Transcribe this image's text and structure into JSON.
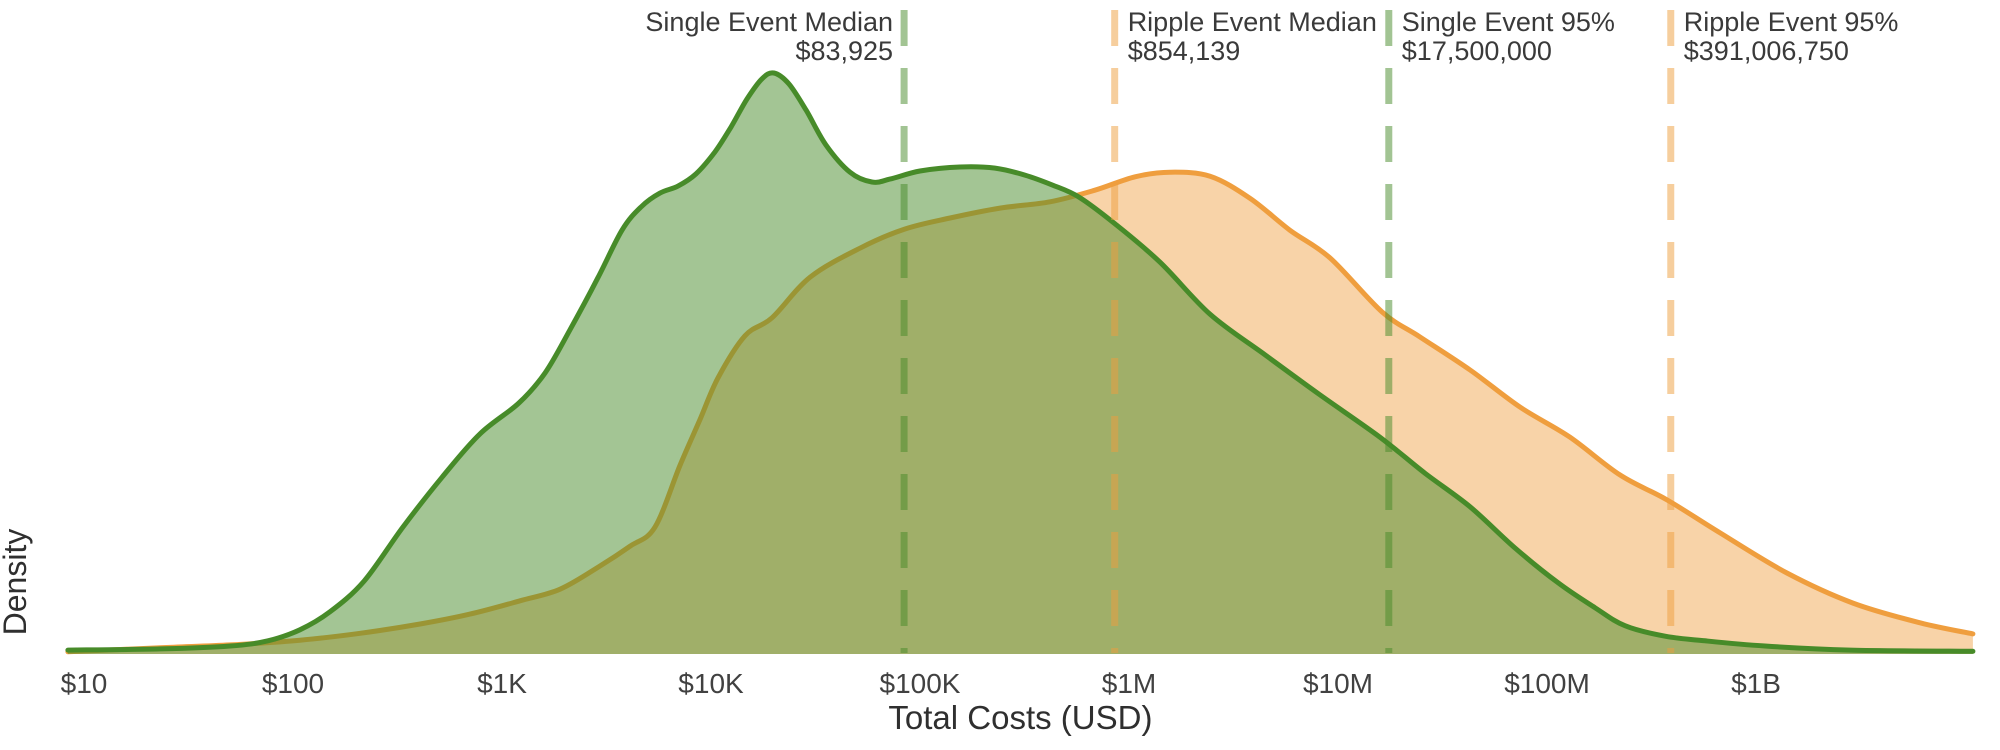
{
  "page": {
    "background": "#ffffff"
  },
  "chart_data": {
    "type": "area",
    "variant": "kde-density-log-x",
    "title": "",
    "xlabel": "Total Costs (USD)",
    "ylabel": "Density",
    "x_scale": "log10",
    "grid": false,
    "legend": false,
    "text_color": "#3a3a3a",
    "x_range_log10": [
      0.923,
      10.038
    ],
    "y_range_density": [
      0,
      1.05
    ],
    "x_ticks": [
      {
        "label": "$10",
        "value": 10
      },
      {
        "label": "$100",
        "value": 100
      },
      {
        "label": "$1K",
        "value": 1000
      },
      {
        "label": "$10K",
        "value": 10000
      },
      {
        "label": "$100K",
        "value": 100000
      },
      {
        "label": "$1M",
        "value": 1000000
      },
      {
        "label": "$10M",
        "value": 10000000
      },
      {
        "label": "$100M",
        "value": 100000000
      },
      {
        "label": "$1B",
        "value": 1000000000
      }
    ],
    "series": [
      {
        "name": "Ripple Event",
        "color": "#ef9e3e",
        "fill_opacity": 0.45,
        "points_log10x_density": [
          [
            0.923,
            0.002
          ],
          [
            1.364,
            0.009
          ],
          [
            1.699,
            0.014
          ],
          [
            2.033,
            0.022
          ],
          [
            2.321,
            0.034
          ],
          [
            2.608,
            0.05
          ],
          [
            2.847,
            0.067
          ],
          [
            3.086,
            0.09
          ],
          [
            3.278,
            0.11
          ],
          [
            3.469,
            0.15
          ],
          [
            3.612,
            0.184
          ],
          [
            3.732,
            0.217
          ],
          [
            3.852,
            0.324
          ],
          [
            3.947,
            0.402
          ],
          [
            4.033,
            0.474
          ],
          [
            4.163,
            0.547
          ],
          [
            4.292,
            0.578
          ],
          [
            4.474,
            0.648
          ],
          [
            4.713,
            0.698
          ],
          [
            4.928,
            0.731
          ],
          [
            5.144,
            0.75
          ],
          [
            5.383,
            0.767
          ],
          [
            5.622,
            0.778
          ],
          [
            5.837,
            0.798
          ],
          [
            6.029,
            0.821
          ],
          [
            6.196,
            0.829
          ],
          [
            6.388,
            0.822
          ],
          [
            6.579,
            0.784
          ],
          [
            6.77,
            0.729
          ],
          [
            6.962,
            0.681
          ],
          [
            7.211,
            0.588
          ],
          [
            7.392,
            0.545
          ],
          [
            7.632,
            0.488
          ],
          [
            7.871,
            0.424
          ],
          [
            8.11,
            0.372
          ],
          [
            8.349,
            0.307
          ],
          [
            8.574,
            0.264
          ],
          [
            8.828,
            0.207
          ],
          [
            9.148,
            0.138
          ],
          [
            9.464,
            0.086
          ],
          [
            9.785,
            0.052
          ],
          [
            10.038,
            0.033
          ]
        ]
      },
      {
        "name": "Single Event",
        "color": "#478b29",
        "fill_opacity": 0.5,
        "points_log10x_density": [
          [
            0.923,
            0.005
          ],
          [
            1.364,
            0.007
          ],
          [
            1.699,
            0.012
          ],
          [
            1.88,
            0.021
          ],
          [
            2.033,
            0.04
          ],
          [
            2.177,
            0.071
          ],
          [
            2.34,
            0.124
          ],
          [
            2.526,
            0.217
          ],
          [
            2.713,
            0.303
          ],
          [
            2.895,
            0.378
          ],
          [
            3.081,
            0.431
          ],
          [
            3.206,
            0.483
          ],
          [
            3.325,
            0.557
          ],
          [
            3.459,
            0.647
          ],
          [
            3.574,
            0.729
          ],
          [
            3.665,
            0.769
          ],
          [
            3.756,
            0.793
          ],
          [
            3.842,
            0.805
          ],
          [
            3.928,
            0.826
          ],
          [
            4.019,
            0.864
          ],
          [
            4.096,
            0.907
          ],
          [
            4.172,
            0.955
          ],
          [
            4.244,
            0.99
          ],
          [
            4.301,
            1.0
          ],
          [
            4.373,
            0.981
          ],
          [
            4.455,
            0.936
          ],
          [
            4.55,
            0.876
          ],
          [
            4.665,
            0.829
          ],
          [
            4.77,
            0.812
          ],
          [
            4.856,
            0.817
          ],
          [
            5.0,
            0.831
          ],
          [
            5.191,
            0.838
          ],
          [
            5.359,
            0.836
          ],
          [
            5.502,
            0.824
          ],
          [
            5.632,
            0.807
          ],
          [
            5.761,
            0.786
          ],
          [
            5.933,
            0.74
          ],
          [
            6.148,
            0.674
          ],
          [
            6.388,
            0.584
          ],
          [
            6.651,
            0.514
          ],
          [
            6.914,
            0.445
          ],
          [
            7.201,
            0.372
          ],
          [
            7.416,
            0.31
          ],
          [
            7.632,
            0.252
          ],
          [
            7.847,
            0.181
          ],
          [
            8.053,
            0.121
          ],
          [
            8.23,
            0.078
          ],
          [
            8.373,
            0.047
          ],
          [
            8.565,
            0.029
          ],
          [
            8.756,
            0.021
          ],
          [
            9.043,
            0.012
          ],
          [
            9.45,
            0.005
          ],
          [
            10.038,
            0.003
          ]
        ]
      }
    ],
    "markers": [
      {
        "name": "Single Event Median",
        "value": 83925,
        "value_label": "$83,925",
        "color": "#478b29",
        "label_align": "right"
      },
      {
        "name": "Ripple Event Median",
        "value": 854139,
        "value_label": "$854,139",
        "color": "#ef9e3e",
        "label_align": "left"
      },
      {
        "name": "Single Event 95%",
        "value": 17500000,
        "value_label": "$17,500,000",
        "color": "#478b29",
        "label_align": "left"
      },
      {
        "name": "Ripple Event 95%",
        "value": 391006750,
        "value_label": "$391,006,750",
        "color": "#ef9e3e",
        "label_align": "left"
      }
    ]
  }
}
